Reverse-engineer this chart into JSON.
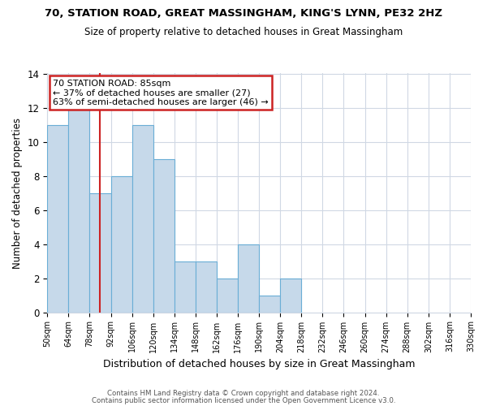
{
  "title1": "70, STATION ROAD, GREAT MASSINGHAM, KING'S LYNN, PE32 2HZ",
  "title2": "Size of property relative to detached houses in Great Massingham",
  "xlabel": "Distribution of detached houses by size in Great Massingham",
  "ylabel": "Number of detached properties",
  "bin_edges": [
    50,
    64,
    78,
    92,
    106,
    120,
    134,
    148,
    162,
    176,
    190,
    204,
    218,
    232,
    246,
    260,
    274,
    288,
    302,
    316,
    330
  ],
  "bin_counts": [
    11,
    12,
    7,
    8,
    11,
    9,
    3,
    3,
    2,
    4,
    1,
    2,
    0,
    0,
    0,
    0,
    0,
    0,
    0,
    0
  ],
  "bar_facecolor": "#c6d9ea",
  "bar_edgecolor": "#6aaed6",
  "grid_color": "#d0d8e4",
  "vline_x": 85,
  "vline_color": "#cc2222",
  "annotation_title": "70 STATION ROAD: 85sqm",
  "annotation_line2": "← 37% of detached houses are smaller (27)",
  "annotation_line3": "63% of semi-detached houses are larger (46) →",
  "annotation_box_edgecolor": "#cc2222",
  "annotation_box_facecolor": "#ffffff",
  "ylim": [
    0,
    14
  ],
  "yticks": [
    0,
    2,
    4,
    6,
    8,
    10,
    12,
    14
  ],
  "footnote1": "Contains HM Land Registry data © Crown copyright and database right 2024.",
  "footnote2": "Contains public sector information licensed under the Open Government Licence v3.0.",
  "bg_color": "#ffffff",
  "plot_bg_color": "#ffffff"
}
